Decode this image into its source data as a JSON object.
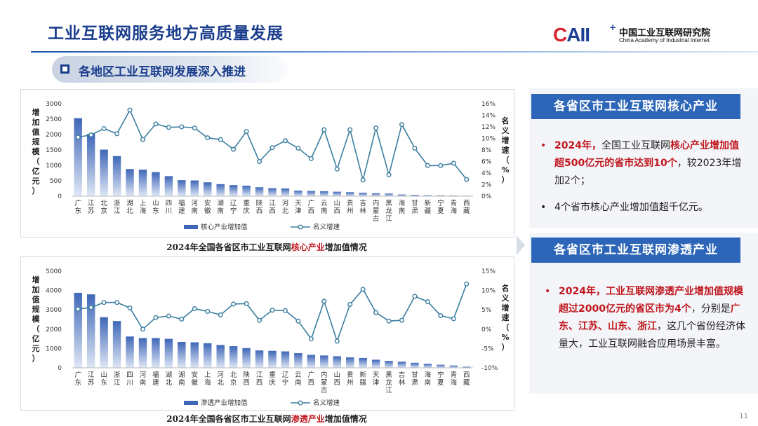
{
  "title": "工业互联网服务地方高质量发展",
  "logo": {
    "mark_c": "C",
    "mark_rest": "AII",
    "mark_plus": "+",
    "name_cn": "中国工业互联网研究院",
    "name_en": "China Academy of Industrial Internet"
  },
  "subtitle": "各地区工业互联网发展深入推进",
  "colors": {
    "title": "#1a3d8c",
    "bar_top": "#3f67b8",
    "bar_bottom": "#dfe7f5",
    "line": "#3b7ea0",
    "panel_head": "#2d66b8",
    "highlight": "#c0161d"
  },
  "chart_data": [
    {
      "type": "bar",
      "title": "",
      "ylabel": "增加值规模（亿元）",
      "y2label": "名义增速（%）",
      "ylim": [
        0,
        3000
      ],
      "yticks": [
        "0",
        "500",
        "1000",
        "1500",
        "2000",
        "2500",
        "3000"
      ],
      "y2lim": [
        0,
        16
      ],
      "y2ticks": [
        "0%",
        "2%",
        "4%",
        "6%",
        "8%",
        "10%",
        "12%",
        "14%",
        "16%"
      ],
      "categories": [
        "广东",
        "江苏",
        "北京",
        "浙江",
        "湖北",
        "上海",
        "山东",
        "四川",
        "福建",
        "河南",
        "安徽",
        "湖南",
        "辽宁",
        "重庆",
        "陕西",
        "江西",
        "河北",
        "天津",
        "广西",
        "云南",
        "山西",
        "贵州",
        "吉林",
        "内蒙古",
        "黑龙江",
        "海南",
        "甘肃",
        "新疆",
        "宁夏",
        "青海",
        "西藏"
      ],
      "series": [
        {
          "name": "核心产业增加值",
          "kind": "bar",
          "values": [
            2530,
            2020,
            1510,
            1300,
            880,
            860,
            780,
            650,
            520,
            510,
            450,
            390,
            360,
            340,
            290,
            260,
            250,
            180,
            170,
            160,
            145,
            130,
            110,
            95,
            85,
            55,
            45,
            30,
            25,
            20,
            15
          ]
        },
        {
          "name": "名义增速",
          "kind": "line",
          "axis": "right",
          "values": [
            10.2,
            10.6,
            11.7,
            10.8,
            14.9,
            9.8,
            12.5,
            11.9,
            12.0,
            11.8,
            10.1,
            9.8,
            8.1,
            11.2,
            6.0,
            8.4,
            9.6,
            8.3,
            6.5,
            11.5,
            4.7,
            11.5,
            2.8,
            11.8,
            3.7,
            12.4,
            8.3,
            5.3,
            5.3,
            5.7,
            2.9
          ]
        }
      ],
      "legend": "bottom"
    },
    {
      "type": "bar",
      "title": "",
      "ylabel": "增加值规模（亿元）",
      "y2label": "名义增速（%）",
      "ylim": [
        0,
        5000
      ],
      "yticks": [
        "0",
        "1000",
        "2000",
        "3000",
        "4000",
        "5000"
      ],
      "y2lim": [
        -10,
        15
      ],
      "y2ticks": [
        "-10%",
        "-5%",
        "0%",
        "5%",
        "10%",
        "15%"
      ],
      "categories": [
        "广东",
        "江苏",
        "山东",
        "浙江",
        "四川",
        "河南",
        "福建",
        "湖北",
        "湖南",
        "安徽",
        "上海",
        "河北",
        "北京",
        "陕西",
        "江西",
        "重庆",
        "辽宁",
        "云南",
        "广西",
        "内蒙古",
        "山西",
        "贵州",
        "新疆",
        "天津",
        "黑龙江",
        "吉林",
        "甘肃",
        "海南",
        "宁夏",
        "青海",
        "西藏"
      ],
      "series": [
        {
          "name": "渗透产业增加值",
          "kind": "bar",
          "values": [
            3880,
            3800,
            2620,
            2420,
            1620,
            1540,
            1540,
            1500,
            1340,
            1320,
            1270,
            1180,
            1120,
            1020,
            900,
            880,
            850,
            760,
            670,
            640,
            600,
            540,
            510,
            420,
            360,
            320,
            260,
            210,
            160,
            120,
            60
          ]
        },
        {
          "name": "名义增速",
          "kind": "line",
          "axis": "right",
          "values": [
            5.2,
            5.6,
            6.9,
            6.9,
            5.5,
            0,
            3.0,
            3.4,
            2.6,
            5.3,
            4.6,
            3.7,
            6.5,
            6.6,
            2.3,
            4.9,
            4.8,
            2.1,
            -2.5,
            7.2,
            -3.1,
            6.4,
            10.3,
            4.3,
            2.1,
            2.3,
            8.5,
            7.1,
            3.5,
            2.7,
            11.7
          ]
        }
      ],
      "legend": "bottom"
    }
  ],
  "captions": [
    {
      "pre": "2024年全国各省区市工业互联网",
      "hl": "核心产业",
      "post": "增加值情况"
    },
    {
      "pre": "2024年全国各省区市工业互联网",
      "hl": "渗透产业",
      "post": "增加值情况"
    }
  ],
  "panel1": {
    "heading": "各省区市工业互联网核心产业",
    "b1_red1": "2024年，",
    "b1_text1": "全国工业互联网",
    "b1_red2": "核心产业增加值超500亿元的省市达到10个",
    "b1_text2": "，较2023年增加2个；",
    "b2": "4个省市核心产业增加值超千亿元。"
  },
  "panel2": {
    "heading": "各省区市工业互联网渗透产业",
    "b1_red": "2024年，工业互联网渗透产业增加值规模超过2000亿元的省区市为4个",
    "b1_text1": "，分别是",
    "b1_provinces": "广东、江苏、山东、浙江",
    "b1_text2": "，这几个省份经济体量大，工业互联网融合应用场景丰富。"
  },
  "page_number": "11"
}
